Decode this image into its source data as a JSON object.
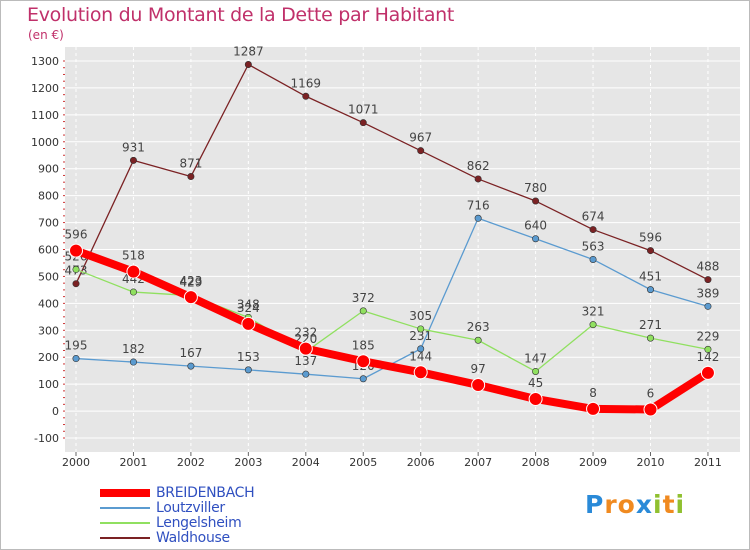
{
  "chart_data": {
    "type": "line",
    "title": "Evolution du Montant de la Dette par Habitant",
    "subtitle": "(en €)",
    "xlabel": "",
    "ylabel": "",
    "categories": [
      "2000",
      "2001",
      "2002",
      "2003",
      "2004",
      "2005",
      "2006",
      "2007",
      "2008",
      "2009",
      "2010",
      "2011"
    ],
    "ylim": [
      -100,
      1300
    ],
    "yticks": [
      -100,
      0,
      100,
      200,
      300,
      400,
      500,
      600,
      700,
      800,
      900,
      1000,
      1100,
      1200,
      1300
    ],
    "grid": true,
    "legend_position": "bottom-left",
    "series": [
      {
        "name": "Waldhouse",
        "color": "#7b2224",
        "values": [
          473,
          931,
          871,
          1287,
          1169,
          1071,
          967,
          862,
          780,
          674,
          596,
          488
        ]
      },
      {
        "name": "Loutzviller",
        "color": "#5b9bd0",
        "values": [
          195,
          182,
          167,
          153,
          137,
          120,
          231,
          716,
          640,
          563,
          451,
          389
        ]
      },
      {
        "name": "Lengelsheim",
        "color": "#90e060",
        "values": [
          526,
          442,
          429,
          348,
          220,
          372,
          305,
          263,
          147,
          321,
          271,
          229
        ]
      },
      {
        "name": "BREIDENBACH",
        "color": "#ff0000",
        "values": [
          596,
          518,
          423,
          324,
          232,
          185,
          144,
          97,
          45,
          8,
          6,
          142
        ]
      }
    ]
  },
  "legend": [
    {
      "name": "BREIDENBACH",
      "color": "#ff0000"
    },
    {
      "name": "Loutzviller",
      "color": "#5b9bd0"
    },
    {
      "name": "Lengelsheim",
      "color": "#90e060"
    },
    {
      "name": "Waldhouse",
      "color": "#7b2224"
    }
  ],
  "legend_label_color": "#3050c0",
  "logo": {
    "letters": [
      "P",
      "r",
      "o",
      "x",
      "i",
      "t",
      "i"
    ],
    "colors": [
      "#2a8ad8",
      "#f08a20",
      "#f08a20",
      "#2a8ad8",
      "#90c030",
      "#f08a20",
      "#90c030"
    ]
  }
}
